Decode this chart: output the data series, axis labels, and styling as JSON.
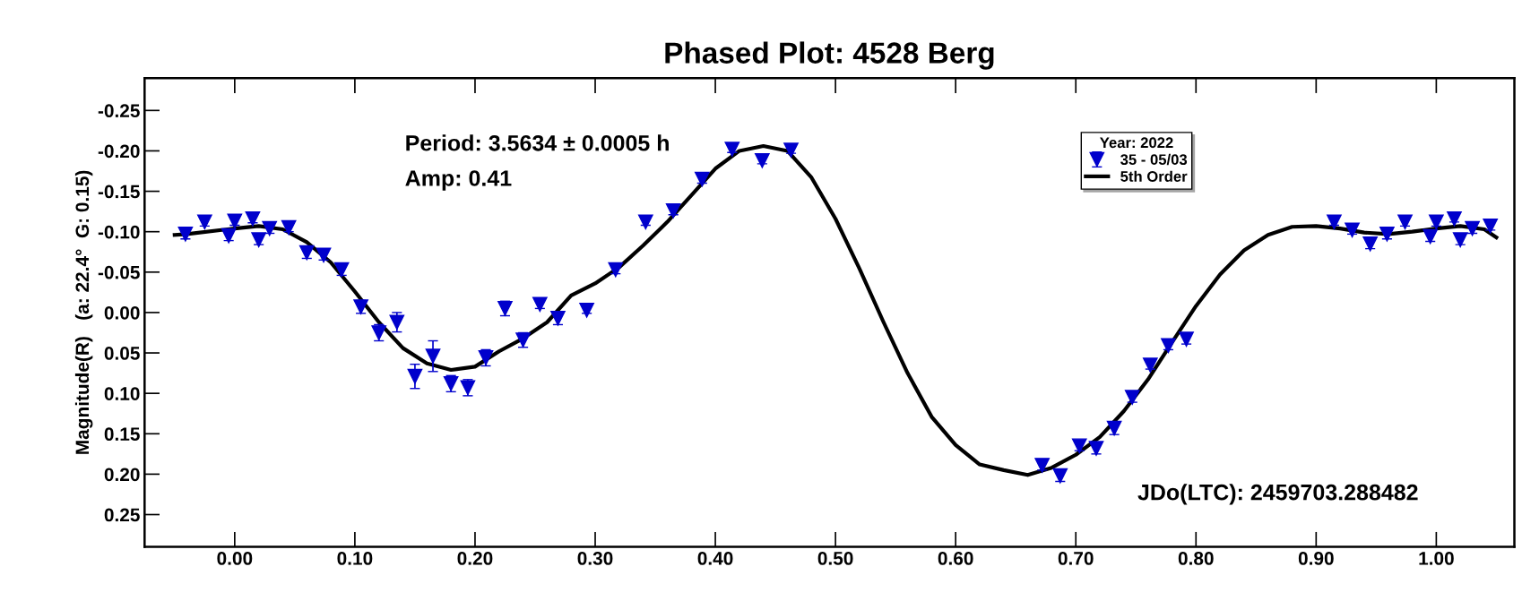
{
  "chart_data": {
    "type": "scatter",
    "title": "Phased Plot: 4528 Berg",
    "ylabel": "Magnitude(R)   (a: 22.4°  G: 0.15)",
    "legend_title": "Year: 2022",
    "annotations": [
      "Period: 3.5634 ± 0.0005 h",
      "Amp: 0.41",
      "JDo(LTC): 2459703.288482"
    ],
    "xlim": [
      -0.075,
      1.065
    ],
    "ylim": [
      0.29,
      -0.29
    ],
    "xticks": [
      {
        "value": 0,
        "label": "0.00"
      },
      {
        "value": 0.1,
        "label": "0.10"
      },
      {
        "value": 0.2,
        "label": "0.20"
      },
      {
        "value": 0.3,
        "label": "0.30"
      },
      {
        "value": 0.4,
        "label": "0.40"
      },
      {
        "value": 0.5,
        "label": "0.50"
      },
      {
        "value": 0.6,
        "label": "0.60"
      },
      {
        "value": 0.7,
        "label": "0.70"
      },
      {
        "value": 0.8,
        "label": "0.80"
      },
      {
        "value": 0.9,
        "label": "0.90"
      },
      {
        "value": 1,
        "label": "1.00"
      }
    ],
    "yticks": [
      {
        "value": -0.25,
        "label": "-0.25"
      },
      {
        "value": -0.2,
        "label": "-0.20"
      },
      {
        "value": -0.15,
        "label": "-0.15"
      },
      {
        "value": -0.1,
        "label": "-0.10"
      },
      {
        "value": -0.05,
        "label": "-0.05"
      },
      {
        "value": 0,
        "label": "0.00"
      },
      {
        "value": 0.05,
        "label": "0.05"
      },
      {
        "value": 0.1,
        "label": "0.10"
      },
      {
        "value": 0.15,
        "label": "0.15"
      },
      {
        "value": 0.2,
        "label": "0.20"
      },
      {
        "value": 0.25,
        "label": "0.25"
      }
    ],
    "grid": false,
    "legend": "top right",
    "series": [
      {
        "name": "35 - 05/03",
        "marker": "triangle",
        "color": "#0000cc",
        "x": [
          -0.041,
          -0.025,
          -0.005,
          0.0,
          0.015,
          0.02,
          0.029,
          0.045,
          0.06,
          0.074,
          0.089,
          0.105,
          0.12,
          0.135,
          0.15,
          0.165,
          0.18,
          0.194,
          0.209,
          0.225,
          0.24,
          0.254,
          0.269,
          0.293,
          0.317,
          0.342,
          0.365,
          0.389,
          0.414,
          0.439,
          0.463,
          0.672,
          0.687,
          0.703,
          0.717,
          0.732,
          0.747,
          0.762,
          0.777,
          0.792,
          0.915,
          0.93,
          0.945,
          0.959,
          0.974,
          0.995,
          1.0,
          1.015,
          1.02,
          1.03,
          1.045
        ],
        "values": [
          -0.097,
          -0.112,
          -0.095,
          -0.113,
          -0.116,
          -0.09,
          -0.104,
          -0.105,
          -0.074,
          -0.071,
          -0.053,
          -0.007,
          0.025,
          0.012,
          0.079,
          0.054,
          0.088,
          0.093,
          0.056,
          -0.005,
          0.034,
          -0.01,
          0.007,
          -0.003,
          -0.053,
          -0.112,
          -0.126,
          -0.165,
          -0.202,
          -0.188,
          -0.201,
          0.189,
          0.202,
          0.165,
          0.168,
          0.143,
          0.105,
          0.065,
          0.041,
          0.033,
          -0.112,
          -0.102,
          -0.085,
          -0.097,
          -0.112,
          -0.094,
          -0.112,
          -0.116,
          -0.09,
          -0.104,
          -0.107
        ],
        "errors": [
          0.006,
          0.005,
          0.006,
          0.005,
          0.005,
          0.006,
          0.006,
          0.005,
          0.007,
          0.006,
          0.007,
          0.008,
          0.01,
          0.012,
          0.015,
          0.019,
          0.01,
          0.01,
          0.01,
          0.009,
          0.009,
          0.005,
          0.008,
          0.004,
          0.005,
          0.004,
          0.005,
          0.005,
          0.004,
          0.004,
          0.004,
          0.006,
          0.007,
          0.006,
          0.007,
          0.008,
          0.006,
          0.005,
          0.005,
          0.006,
          0.004,
          0.005,
          0.006,
          0.006,
          0.005,
          0.006,
          0.005,
          0.004,
          0.006,
          0.006,
          0.005
        ]
      },
      {
        "name": "5th Order",
        "type": "line",
        "marker": "none",
        "line_style": "solid",
        "color": "#000000",
        "x": [
          -0.05,
          -0.04,
          0.0,
          0.02,
          0.04,
          0.06,
          0.08,
          0.1,
          0.12,
          0.14,
          0.16,
          0.18,
          0.2,
          0.22,
          0.24,
          0.26,
          0.28,
          0.3,
          0.32,
          0.34,
          0.36,
          0.38,
          0.4,
          0.42,
          0.44,
          0.46,
          0.48,
          0.5,
          0.52,
          0.54,
          0.56,
          0.58,
          0.6,
          0.62,
          0.64,
          0.66,
          0.68,
          0.7,
          0.72,
          0.74,
          0.76,
          0.78,
          0.8,
          0.82,
          0.84,
          0.86,
          0.88,
          0.9,
          0.92,
          0.94,
          0.96,
          0.98,
          1.0,
          1.02,
          1.04,
          1.05
        ],
        "values": [
          -0.096,
          -0.097,
          -0.104,
          -0.107,
          -0.103,
          -0.087,
          -0.062,
          -0.026,
          0.012,
          0.044,
          0.063,
          0.071,
          0.067,
          0.048,
          0.032,
          0.012,
          -0.021,
          -0.036,
          -0.056,
          -0.083,
          -0.112,
          -0.145,
          -0.178,
          -0.2,
          -0.206,
          -0.2,
          -0.167,
          -0.116,
          -0.054,
          0.012,
          0.075,
          0.129,
          0.164,
          0.188,
          0.195,
          0.201,
          0.192,
          0.176,
          0.154,
          0.122,
          0.083,
          0.037,
          -0.008,
          -0.047,
          -0.077,
          -0.096,
          -0.106,
          -0.107,
          -0.104,
          -0.099,
          -0.097,
          -0.1,
          -0.104,
          -0.107,
          -0.103,
          -0.093
        ]
      }
    ]
  }
}
